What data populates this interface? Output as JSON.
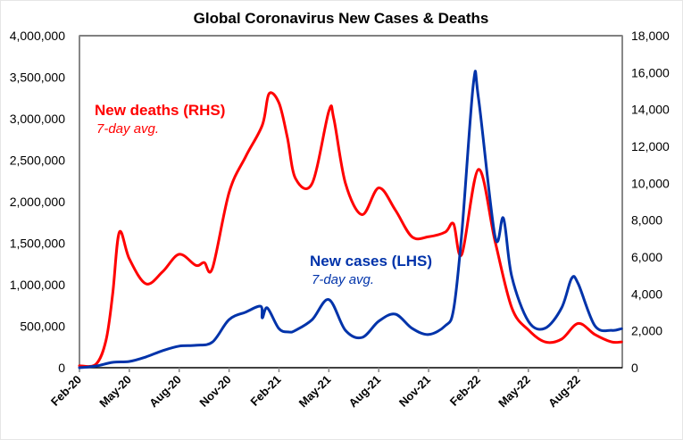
{
  "chart_data": {
    "type": "line",
    "title": "Global Coronavirus New Cases & Deaths",
    "xlabel": "",
    "ylabel_left": "",
    "ylabel_right": "",
    "x_tick_labels": [
      "Feb-20",
      "May-20",
      "Aug-20",
      "Nov-20",
      "Feb-21",
      "May-21",
      "Aug-21",
      "Nov-21",
      "Feb-22",
      "May-22",
      "Aug-22"
    ],
    "x_range": [
      "2020-02-01",
      "2022-10-20"
    ],
    "y_left": {
      "range": [
        0,
        4000000
      ],
      "tick_labels": [
        "0",
        "500,000",
        "1,000,000",
        "1,500,000",
        "2,000,000",
        "2,500,000",
        "3,000,000",
        "3,500,000",
        "4,000,000"
      ],
      "tick_values": [
        0,
        500000,
        1000000,
        1500000,
        2000000,
        2500000,
        3000000,
        3500000,
        4000000
      ]
    },
    "y_right": {
      "range": [
        0,
        18000
      ],
      "tick_labels": [
        "0",
        "2,000",
        "4,000",
        "6,000",
        "8,000",
        "10,000",
        "12,000",
        "14,000",
        "16,000",
        "18,000"
      ],
      "tick_values": [
        0,
        2000,
        4000,
        6000,
        8000,
        10000,
        12000,
        14000,
        16000,
        18000
      ]
    },
    "grid": false,
    "series": [
      {
        "name": "New deaths (RHS)",
        "subtitle": "7-day avg.",
        "axis": "right",
        "color": "#ff0000",
        "x": [
          0,
          1,
          1.6,
          2,
          2.4,
          3,
          4,
          5,
          6,
          7,
          7.5,
          8,
          9,
          10,
          11,
          11.4,
          12,
          12.5,
          13,
          14,
          15,
          15.3,
          16,
          17,
          18,
          19,
          20,
          21,
          22,
          22.5,
          23,
          24,
          25,
          26,
          27,
          28,
          29,
          30,
          31,
          32,
          32.6
        ],
        "values": [
          100,
          200,
          1500,
          4000,
          7350,
          5900,
          4550,
          5200,
          6150,
          5550,
          5700,
          5400,
          9500,
          11450,
          13150,
          14850,
          14350,
          12500,
          10250,
          10000,
          13900,
          13500,
          10000,
          8300,
          9750,
          8550,
          7100,
          7100,
          7350,
          7800,
          6150,
          10750,
          6850,
          3250,
          2050,
          1400,
          1550,
          2400,
          1800,
          1400,
          1400
        ]
      },
      {
        "name": "New cases (LHS)",
        "subtitle": "7-day avg.",
        "axis": "left",
        "color": "#0033aa",
        "x": [
          0,
          1,
          2,
          3,
          4,
          5,
          6,
          7,
          8,
          9,
          10,
          10.9,
          11,
          11.3,
          12,
          12.6,
          13,
          14,
          15,
          16,
          17,
          18,
          19,
          20,
          21,
          22,
          22.5,
          23,
          23.7,
          24,
          25,
          25.5,
          26,
          27,
          28,
          29,
          29.6,
          30,
          31,
          32,
          32.6
        ],
        "values": [
          0,
          20000,
          65000,
          75000,
          130000,
          205000,
          260000,
          270000,
          310000,
          580000,
          670000,
          740000,
          600000,
          720000,
          470000,
          430000,
          450000,
          580000,
          820000,
          450000,
          365000,
          560000,
          645000,
          475000,
          400000,
          505000,
          700000,
          1630000,
          3430000,
          3250000,
          1580000,
          1800000,
          1100000,
          560000,
          475000,
          720000,
          1075000,
          1010000,
          505000,
          450000,
          470000
        ]
      }
    ]
  }
}
